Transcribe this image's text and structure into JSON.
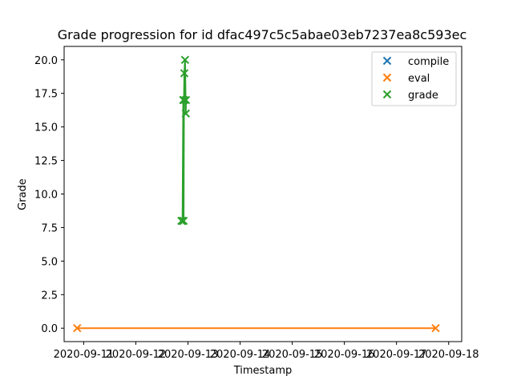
{
  "chart_data": {
    "type": "scatter",
    "title": "Grade progression for id dfac497c5c5abae03eb7237ea8c593ec",
    "xlabel": "Timestamp",
    "ylabel": "Grade",
    "x_ticks": [
      "2020-09-11",
      "2020-09-12",
      "2020-09-13",
      "2020-09-14",
      "2020-09-15",
      "2020-09-16",
      "2020-09-17",
      "2020-09-18"
    ],
    "xlim": [
      "2020-09-10 15:00",
      "2020-09-18 06:00"
    ],
    "y_ticks": [
      "0.0",
      "2.5",
      "5.0",
      "7.5",
      "10.0",
      "12.5",
      "15.0",
      "17.5",
      "20.0"
    ],
    "ylim": [
      -1.0,
      21.0
    ],
    "legend_position": "top-right",
    "grid": false,
    "series": [
      {
        "name": "compile",
        "color": "#1f77b4",
        "marker": "x",
        "x": [],
        "y": []
      },
      {
        "name": "eval",
        "color": "#ff7f0e",
        "marker": "x",
        "x": [
          "2020-09-10 21:00",
          "2020-09-17 18:00"
        ],
        "y": [
          0,
          0
        ]
      },
      {
        "name": "grade",
        "color": "#2ca02c",
        "marker": "x",
        "x": [
          "2020-09-12 21:00",
          "2020-09-12 21:30",
          "2020-09-12 21:50",
          "2020-09-12 22:00",
          "2020-09-12 22:10",
          "2020-09-12 22:20",
          "2020-09-12 22:40",
          "2020-09-12 23:00",
          "2020-09-12 23:05"
        ],
        "y": [
          8,
          8,
          17,
          8,
          17,
          19,
          20,
          16,
          17
        ]
      }
    ]
  }
}
